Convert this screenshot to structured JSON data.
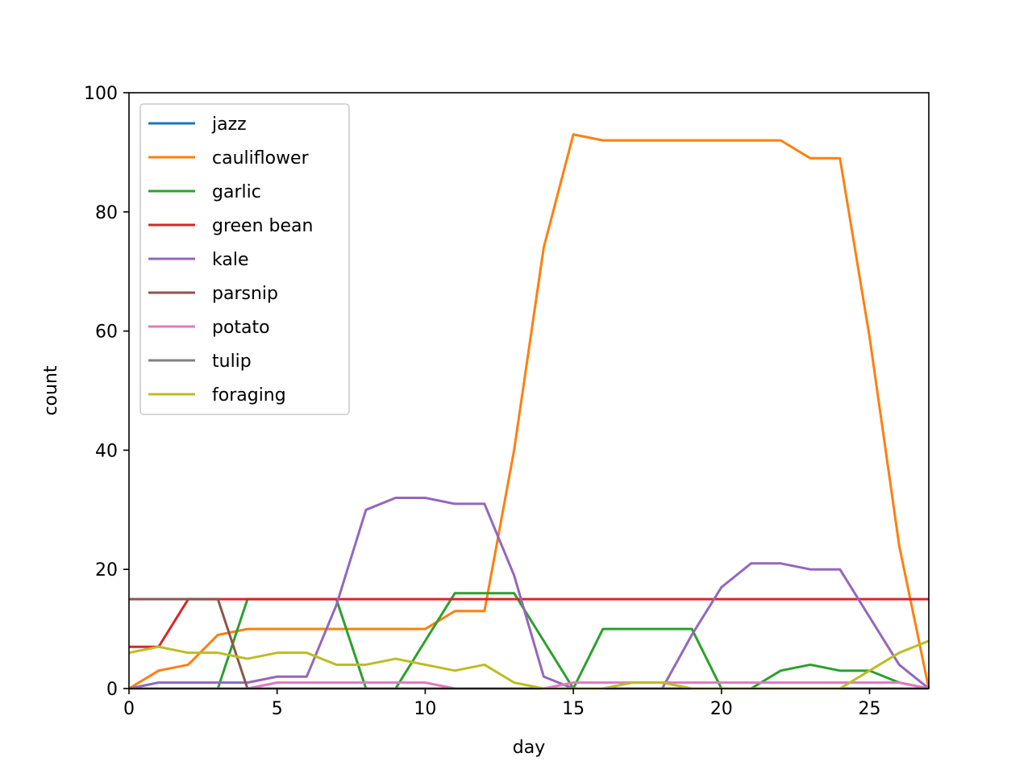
{
  "chart_data": {
    "type": "line",
    "title": "",
    "xlabel": "day",
    "ylabel": "count",
    "xlim": [
      0,
      27
    ],
    "ylim": [
      0,
      100
    ],
    "xticks": [
      0,
      5,
      10,
      15,
      20,
      25
    ],
    "yticks": [
      0,
      20,
      40,
      60,
      80,
      100
    ],
    "grid": false,
    "legend_position": "upper-left",
    "x": [
      0,
      1,
      2,
      3,
      4,
      5,
      6,
      7,
      8,
      9,
      10,
      11,
      12,
      13,
      14,
      15,
      16,
      17,
      18,
      19,
      20,
      21,
      22,
      23,
      24,
      25,
      26,
      27
    ],
    "series": [
      {
        "name": "jazz",
        "color": "#1f77b4",
        "values": [
          0,
          0,
          0,
          0,
          0,
          0,
          0,
          0,
          0,
          0,
          0,
          0,
          0,
          0,
          0,
          0,
          0,
          0,
          0,
          0,
          0,
          0,
          0,
          0,
          0,
          0,
          0,
          0
        ]
      },
      {
        "name": "cauliflower",
        "color": "#ff7f0e",
        "values": [
          0,
          3,
          4,
          9,
          10,
          10,
          10,
          10,
          10,
          10,
          10,
          13,
          13,
          40,
          74,
          93,
          92,
          92,
          92,
          92,
          92,
          92,
          92,
          89,
          89,
          59,
          24,
          0
        ]
      },
      {
        "name": "garlic",
        "color": "#2ca02c",
        "values": [
          0,
          0,
          0,
          0,
          15,
          15,
          15,
          15,
          0,
          0,
          8,
          16,
          16,
          16,
          8,
          0,
          10,
          10,
          10,
          10,
          0,
          0,
          3,
          4,
          3,
          3,
          1,
          0
        ]
      },
      {
        "name": "green bean",
        "color": "#d62728",
        "values": [
          7,
          7,
          15,
          15,
          15,
          15,
          15,
          15,
          15,
          15,
          15,
          15,
          15,
          15,
          15,
          15,
          15,
          15,
          15,
          15,
          15,
          15,
          15,
          15,
          15,
          15,
          15,
          15
        ]
      },
      {
        "name": "kale",
        "color": "#9467bd",
        "values": [
          0,
          1,
          1,
          1,
          1,
          2,
          2,
          14,
          30,
          32,
          32,
          31,
          31,
          19,
          2,
          0,
          0,
          0,
          0,
          9,
          17,
          21,
          21,
          20,
          20,
          12,
          4,
          0
        ]
      },
      {
        "name": "parsnip",
        "color": "#8c564b",
        "values": [
          15,
          15,
          15,
          15,
          0,
          0,
          0,
          0,
          0,
          0,
          0,
          0,
          0,
          0,
          0,
          0,
          0,
          0,
          0,
          0,
          0,
          0,
          0,
          0,
          0,
          0,
          0,
          0
        ]
      },
      {
        "name": "potato",
        "color": "#e377c2",
        "values": [
          0,
          0,
          0,
          0,
          0,
          1,
          1,
          1,
          1,
          1,
          1,
          0,
          0,
          0,
          0,
          1,
          1,
          1,
          1,
          1,
          1,
          1,
          1,
          1,
          1,
          1,
          1,
          0
        ]
      },
      {
        "name": "tulip",
        "color": "#7f7f7f",
        "values": [
          0,
          0,
          0,
          0,
          0,
          0,
          0,
          0,
          0,
          0,
          0,
          0,
          0,
          0,
          0,
          0,
          0,
          0,
          0,
          0,
          0,
          0,
          0,
          0,
          0,
          0,
          0,
          0
        ]
      },
      {
        "name": "foraging",
        "color": "#bcbd22",
        "values": [
          6,
          7,
          6,
          6,
          5,
          6,
          6,
          4,
          4,
          5,
          4,
          3,
          4,
          1,
          0,
          0,
          0,
          1,
          1,
          0,
          0,
          0,
          0,
          0,
          0,
          3,
          6,
          8
        ]
      }
    ]
  }
}
